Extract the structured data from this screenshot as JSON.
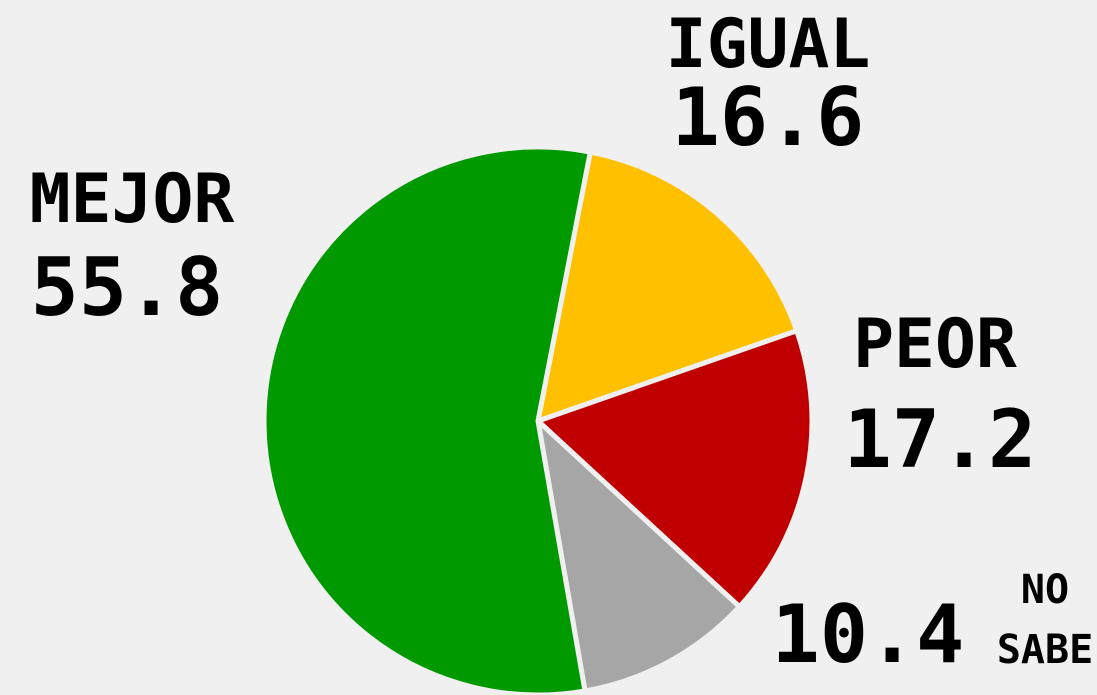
{
  "chart_data": {
    "type": "pie",
    "categories": [
      "IGUAL",
      "PEOR",
      "NO SABE",
      "MEJOR"
    ],
    "values": [
      16.6,
      17.2,
      10.4,
      55.8
    ],
    "colors": [
      "#ffc000",
      "#c00000",
      "#a6a6a6",
      "#009900"
    ]
  }
}
